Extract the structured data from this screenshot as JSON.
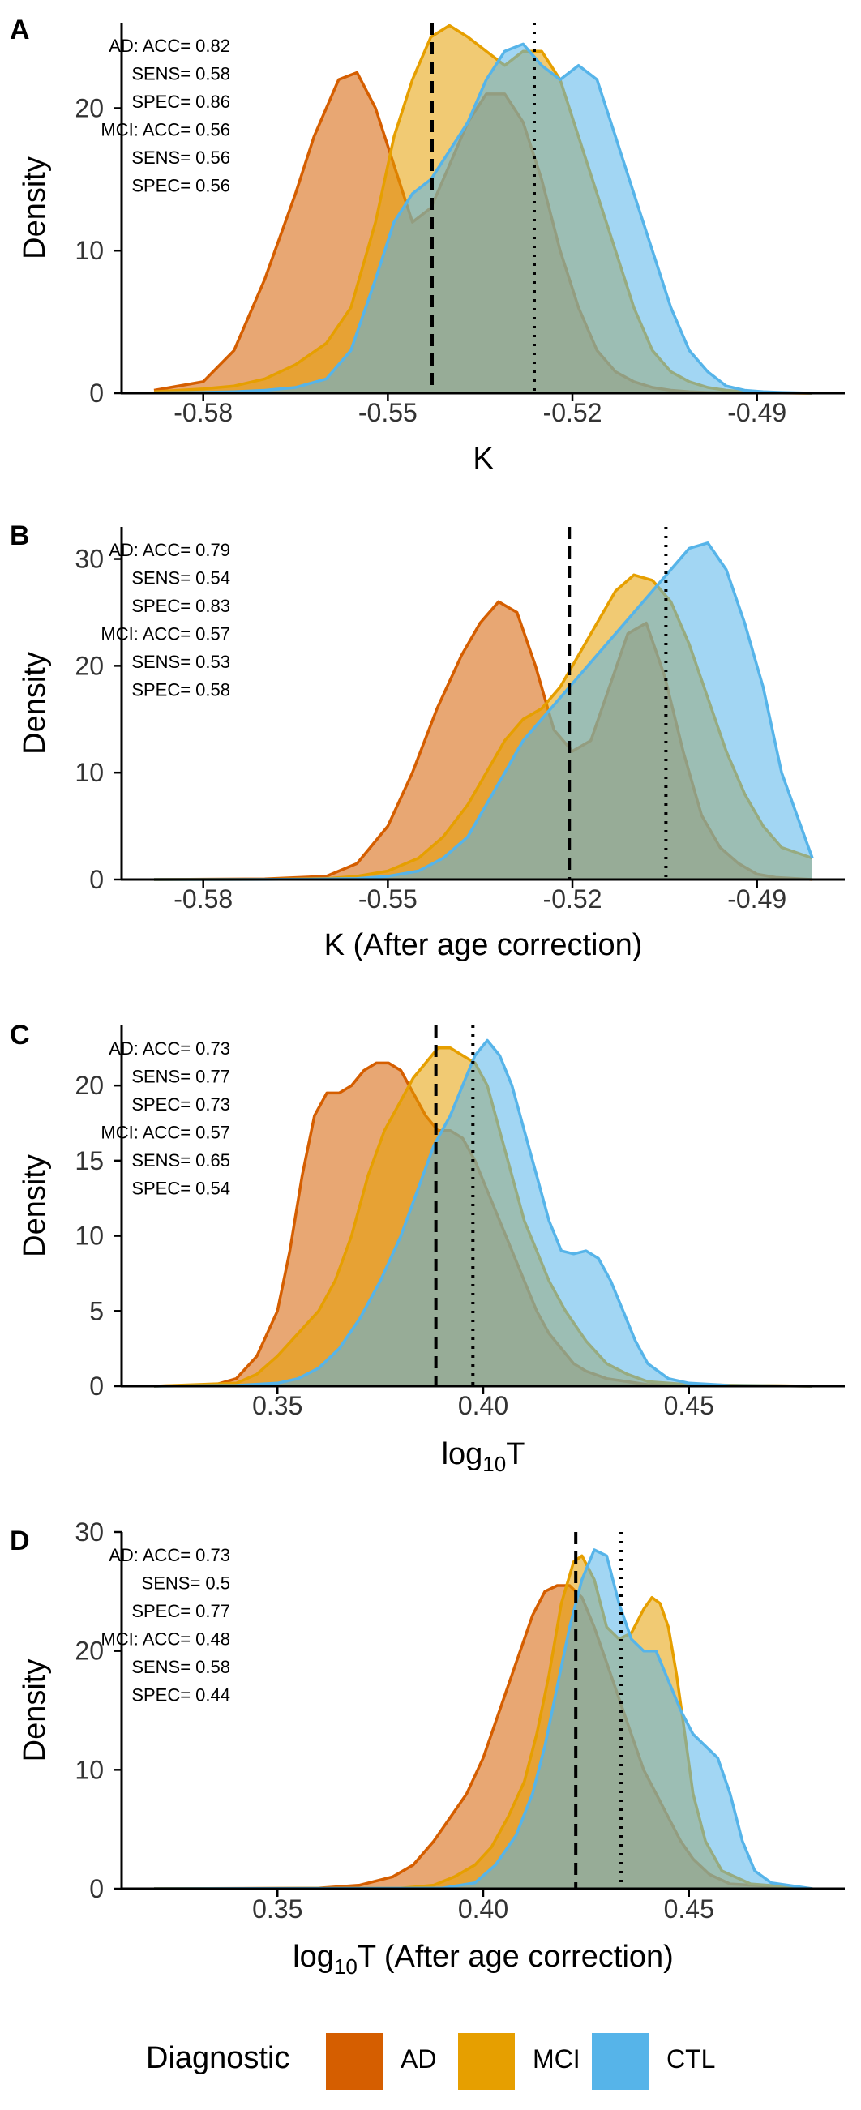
{
  "legend": {
    "title": "Diagnostic",
    "items": [
      {
        "label": "AD",
        "color": "#D55E00"
      },
      {
        "label": "MCI",
        "color": "#E69F00"
      },
      {
        "label": "CTL",
        "color": "#56B4E9"
      }
    ]
  },
  "chart_data": [
    {
      "panel": "A",
      "type": "area",
      "xlabel": "K",
      "xlabel_sub": "",
      "xlabel_post": "",
      "ylabel": "Density",
      "xlim": [
        -0.588,
        -0.481
      ],
      "ylim": [
        0,
        26
      ],
      "xticks": [
        -0.58,
        -0.55,
        -0.52,
        -0.49
      ],
      "xtick_labels": [
        "-0.58",
        "-0.55",
        "-0.52",
        "-0.49"
      ],
      "yticks": [
        0,
        10,
        20
      ],
      "ytick_labels": [
        "0",
        "10",
        "20"
      ],
      "vline_dashed": -0.5428,
      "vline_dotted": -0.5262,
      "stats": [
        "AD: ACC= 0.82",
        "SENS= 0.58",
        "SPEC= 0.86",
        "MCI: ACC= 0.56",
        "SENS= 0.56",
        "SPEC= 0.56"
      ],
      "series": [
        {
          "name": "AD",
          "x": [
            -0.588,
            -0.58,
            -0.575,
            -0.57,
            -0.565,
            -0.562,
            -0.558,
            -0.555,
            -0.552,
            -0.549,
            -0.546,
            -0.543,
            -0.54,
            -0.537,
            -0.534,
            -0.531,
            -0.528,
            -0.525,
            -0.522,
            -0.519,
            -0.516,
            -0.513,
            -0.51,
            -0.507,
            -0.504,
            -0.501,
            -0.498,
            -0.495,
            -0.492,
            -0.489,
            -0.486,
            -0.481
          ],
          "y": [
            0.2,
            0.8,
            3,
            8,
            14,
            18,
            22,
            22.5,
            20,
            16,
            12,
            13,
            16,
            19,
            21,
            21,
            19,
            15,
            10,
            6,
            3,
            1.5,
            0.8,
            0.4,
            0.2,
            0.1,
            0.05,
            0.03,
            0.02,
            0.01,
            0.01,
            0
          ]
        },
        {
          "name": "MCI",
          "x": [
            -0.588,
            -0.58,
            -0.575,
            -0.57,
            -0.565,
            -0.56,
            -0.556,
            -0.552,
            -0.549,
            -0.546,
            -0.543,
            -0.54,
            -0.537,
            -0.534,
            -0.531,
            -0.528,
            -0.525,
            -0.522,
            -0.519,
            -0.516,
            -0.513,
            -0.51,
            -0.507,
            -0.504,
            -0.501,
            -0.498,
            -0.495,
            -0.492,
            -0.489,
            -0.486,
            -0.481
          ],
          "y": [
            0.1,
            0.3,
            0.5,
            1.0,
            2.0,
            3.5,
            6,
            12,
            18,
            22,
            25,
            25.8,
            25,
            24,
            23,
            24,
            24,
            22,
            18,
            14,
            10,
            6,
            3,
            1.5,
            0.8,
            0.4,
            0.2,
            0.1,
            0.05,
            0.02,
            0
          ]
        },
        {
          "name": "CTL",
          "x": [
            -0.588,
            -0.58,
            -0.575,
            -0.57,
            -0.565,
            -0.56,
            -0.556,
            -0.552,
            -0.549,
            -0.546,
            -0.543,
            -0.54,
            -0.537,
            -0.534,
            -0.531,
            -0.528,
            -0.525,
            -0.522,
            -0.519,
            -0.516,
            -0.513,
            -0.51,
            -0.507,
            -0.504,
            -0.501,
            -0.498,
            -0.495,
            -0.492,
            -0.489,
            -0.486,
            -0.481
          ],
          "y": [
            0.02,
            0.05,
            0.1,
            0.2,
            0.4,
            1.0,
            3,
            8,
            12,
            14,
            15,
            17,
            19,
            22,
            24,
            24.5,
            23,
            22,
            23,
            22,
            18,
            14,
            10,
            6,
            3,
            1.5,
            0.5,
            0.2,
            0.1,
            0.05,
            0
          ]
        }
      ]
    },
    {
      "panel": "B",
      "type": "area",
      "xlabel": "K (After age correction)",
      "xlabel_sub": "",
      "xlabel_post": "",
      "ylabel": "Density",
      "xlim": [
        -0.588,
        -0.481
      ],
      "ylim": [
        0,
        33
      ],
      "xticks": [
        -0.58,
        -0.55,
        -0.52,
        -0.49
      ],
      "xtick_labels": [
        "-0.58",
        "-0.55",
        "-0.52",
        "-0.49"
      ],
      "yticks": [
        0,
        10,
        20,
        30
      ],
      "ytick_labels": [
        "0",
        "10",
        "20",
        "30"
      ],
      "vline_dashed": -0.5205,
      "vline_dotted": -0.5048,
      "stats": [
        "AD: ACC= 0.79",
        "SENS= 0.54",
        "SPEC= 0.83",
        "MCI: ACC= 0.57",
        "SENS= 0.53",
        "SPEC= 0.58"
      ],
      "series": [
        {
          "name": "AD",
          "x": [
            -0.588,
            -0.57,
            -0.56,
            -0.555,
            -0.55,
            -0.546,
            -0.542,
            -0.538,
            -0.535,
            -0.532,
            -0.529,
            -0.526,
            -0.523,
            -0.52,
            -0.517,
            -0.514,
            -0.511,
            -0.508,
            -0.505,
            -0.502,
            -0.499,
            -0.496,
            -0.493,
            -0.49,
            -0.487,
            -0.481
          ],
          "y": [
            0,
            0.05,
            0.3,
            1.5,
            5,
            10,
            16,
            21,
            24,
            26,
            25,
            20,
            14,
            12,
            13,
            18,
            23,
            24,
            19,
            12,
            6,
            3,
            1.5,
            0.5,
            0.2,
            0
          ]
        },
        {
          "name": "MCI",
          "x": [
            -0.588,
            -0.57,
            -0.56,
            -0.555,
            -0.55,
            -0.545,
            -0.541,
            -0.537,
            -0.534,
            -0.531,
            -0.528,
            -0.525,
            -0.522,
            -0.519,
            -0.516,
            -0.513,
            -0.51,
            -0.507,
            -0.504,
            -0.501,
            -0.498,
            -0.495,
            -0.492,
            -0.489,
            -0.486,
            -0.481
          ],
          "y": [
            0,
            0.02,
            0.1,
            0.3,
            0.8,
            2,
            4,
            7,
            10,
            13,
            15,
            16,
            18,
            21,
            24,
            27,
            28.5,
            28,
            26,
            22,
            17,
            12,
            8,
            5,
            3,
            2
          ]
        },
        {
          "name": "CTL",
          "x": [
            -0.588,
            -0.57,
            -0.56,
            -0.555,
            -0.55,
            -0.545,
            -0.541,
            -0.537,
            -0.534,
            -0.531,
            -0.528,
            -0.525,
            -0.522,
            -0.519,
            -0.516,
            -0.513,
            -0.51,
            -0.507,
            -0.504,
            -0.501,
            -0.498,
            -0.495,
            -0.492,
            -0.489,
            -0.486,
            -0.481
          ],
          "y": [
            0,
            0.01,
            0.05,
            0.1,
            0.3,
            0.8,
            2,
            4,
            7,
            10,
            13,
            15,
            17,
            19,
            21,
            23,
            25,
            27,
            29,
            31,
            31.5,
            29,
            24,
            18,
            10,
            2
          ]
        }
      ]
    },
    {
      "panel": "C",
      "type": "area",
      "xlabel": "log",
      "xlabel_sub": "10",
      "xlabel_post": "T",
      "ylabel": "Density",
      "xlim": [
        0.32,
        0.48
      ],
      "ylim": [
        0,
        24
      ],
      "xticks": [
        0.35,
        0.4,
        0.45
      ],
      "xtick_labels": [
        "0.35",
        "0.40",
        "0.45"
      ],
      "yticks": [
        0,
        5,
        10,
        15,
        20
      ],
      "ytick_labels": [
        "0",
        "5",
        "10",
        "15",
        "20"
      ],
      "vline_dashed": 0.3885,
      "vline_dotted": 0.3975,
      "stats": [
        "AD: ACC= 0.73",
        "SENS= 0.77",
        "SPEC= 0.73",
        "MCI: ACC= 0.57",
        "SENS= 0.65",
        "SPEC= 0.54"
      ],
      "series": [
        {
          "name": "AD",
          "x": [
            0.32,
            0.335,
            0.34,
            0.345,
            0.35,
            0.353,
            0.356,
            0.359,
            0.362,
            0.365,
            0.368,
            0.371,
            0.374,
            0.377,
            0.38,
            0.383,
            0.386,
            0.389,
            0.392,
            0.395,
            0.398,
            0.401,
            0.404,
            0.407,
            0.41,
            0.413,
            0.416,
            0.419,
            0.422,
            0.425,
            0.43,
            0.44,
            0.48
          ],
          "y": [
            0,
            0.1,
            0.5,
            2,
            5,
            9,
            14,
            18,
            19.5,
            19.5,
            20,
            21,
            21.5,
            21.5,
            21,
            19.5,
            18,
            17,
            17,
            16.5,
            15,
            13,
            11,
            9,
            7,
            5,
            3.5,
            2.5,
            1.5,
            1,
            0.5,
            0.1,
            0
          ]
        },
        {
          "name": "MCI",
          "x": [
            0.32,
            0.34,
            0.345,
            0.35,
            0.355,
            0.36,
            0.364,
            0.368,
            0.372,
            0.376,
            0.38,
            0.383,
            0.386,
            0.389,
            0.392,
            0.395,
            0.398,
            0.401,
            0.404,
            0.407,
            0.41,
            0.413,
            0.416,
            0.42,
            0.425,
            0.43,
            0.435,
            0.44,
            0.45,
            0.48
          ],
          "y": [
            0,
            0.2,
            0.8,
            2,
            3.5,
            5,
            7,
            10,
            14,
            17,
            19,
            20.5,
            21.5,
            22.5,
            22.5,
            22,
            21.5,
            20,
            17,
            14,
            11,
            9,
            7,
            5,
            3,
            1.5,
            0.8,
            0.3,
            0.1,
            0
          ]
        },
        {
          "name": "CTL",
          "x": [
            0.32,
            0.34,
            0.35,
            0.355,
            0.36,
            0.365,
            0.37,
            0.375,
            0.38,
            0.384,
            0.388,
            0.392,
            0.395,
            0.398,
            0.401,
            0.404,
            0.407,
            0.41,
            0.413,
            0.416,
            0.419,
            0.422,
            0.425,
            0.428,
            0.431,
            0.434,
            0.437,
            0.44,
            0.445,
            0.45,
            0.46,
            0.48
          ],
          "y": [
            0,
            0.05,
            0.2,
            0.5,
            1.2,
            2.5,
            4.5,
            7,
            10,
            13,
            16,
            18,
            20,
            22,
            23,
            22,
            20,
            17,
            14,
            11,
            9,
            8.8,
            9,
            8.5,
            7,
            5,
            3,
            1.5,
            0.5,
            0.2,
            0.05,
            0
          ]
        }
      ]
    },
    {
      "panel": "D",
      "type": "area",
      "xlabel": "log",
      "xlabel_sub": "10",
      "xlabel_post": "T (After age correction)",
      "ylabel": "Density",
      "xlim": [
        0.32,
        0.48
      ],
      "ylim": [
        0,
        30
      ],
      "xticks": [
        0.35,
        0.4,
        0.45
      ],
      "xtick_labels": [
        "0.35",
        "0.40",
        "0.45"
      ],
      "yticks": [
        0,
        10,
        20,
        30
      ],
      "ytick_labels": [
        "0",
        "10",
        "20",
        "30"
      ],
      "vline_dashed": 0.4225,
      "vline_dotted": 0.4335,
      "stats": [
        "AD: ACC= 0.73",
        "SENS= 0.5",
        "SPEC= 0.77",
        "MCI: ACC= 0.48",
        "SENS= 0.58",
        "SPEC= 0.44"
      ],
      "series": [
        {
          "name": "AD",
          "x": [
            0.32,
            0.36,
            0.37,
            0.378,
            0.383,
            0.388,
            0.392,
            0.396,
            0.4,
            0.404,
            0.408,
            0.412,
            0.415,
            0.418,
            0.421,
            0.424,
            0.427,
            0.43,
            0.433,
            0.436,
            0.439,
            0.442,
            0.445,
            0.448,
            0.451,
            0.455,
            0.46,
            0.48
          ],
          "y": [
            0,
            0.05,
            0.3,
            1,
            2,
            4,
            6,
            8,
            11,
            15,
            19,
            23,
            25,
            25.5,
            25.5,
            24.5,
            22,
            19,
            16,
            13,
            10,
            8,
            6,
            4,
            2.5,
            1.2,
            0.4,
            0
          ]
        },
        {
          "name": "MCI",
          "x": [
            0.32,
            0.38,
            0.388,
            0.393,
            0.398,
            0.402,
            0.406,
            0.41,
            0.413,
            0.416,
            0.419,
            0.422,
            0.424,
            0.427,
            0.43,
            0.433,
            0.436,
            0.439,
            0.441,
            0.443,
            0.445,
            0.447,
            0.449,
            0.451,
            0.454,
            0.458,
            0.465,
            0.48
          ],
          "y": [
            0,
            0.05,
            0.3,
            1,
            2,
            3.5,
            6,
            9,
            13,
            18,
            24,
            27.5,
            28,
            26,
            22,
            21,
            21.5,
            23.5,
            24.5,
            24,
            22,
            18,
            13,
            8,
            4,
            1.5,
            0.4,
            0
          ]
        },
        {
          "name": "CTL",
          "x": [
            0.32,
            0.39,
            0.398,
            0.403,
            0.408,
            0.412,
            0.415,
            0.418,
            0.421,
            0.424,
            0.427,
            0.43,
            0.433,
            0.436,
            0.439,
            0.442,
            0.445,
            0.448,
            0.451,
            0.454,
            0.457,
            0.46,
            0.463,
            0.466,
            0.47,
            0.48
          ],
          "y": [
            0,
            0.05,
            0.5,
            2,
            4.5,
            8,
            12,
            17,
            22,
            26,
            28.5,
            28,
            24,
            21,
            20,
            20,
            17.5,
            15,
            13,
            12,
            11,
            8,
            4,
            1.5,
            0.5,
            0
          ]
        }
      ]
    }
  ]
}
